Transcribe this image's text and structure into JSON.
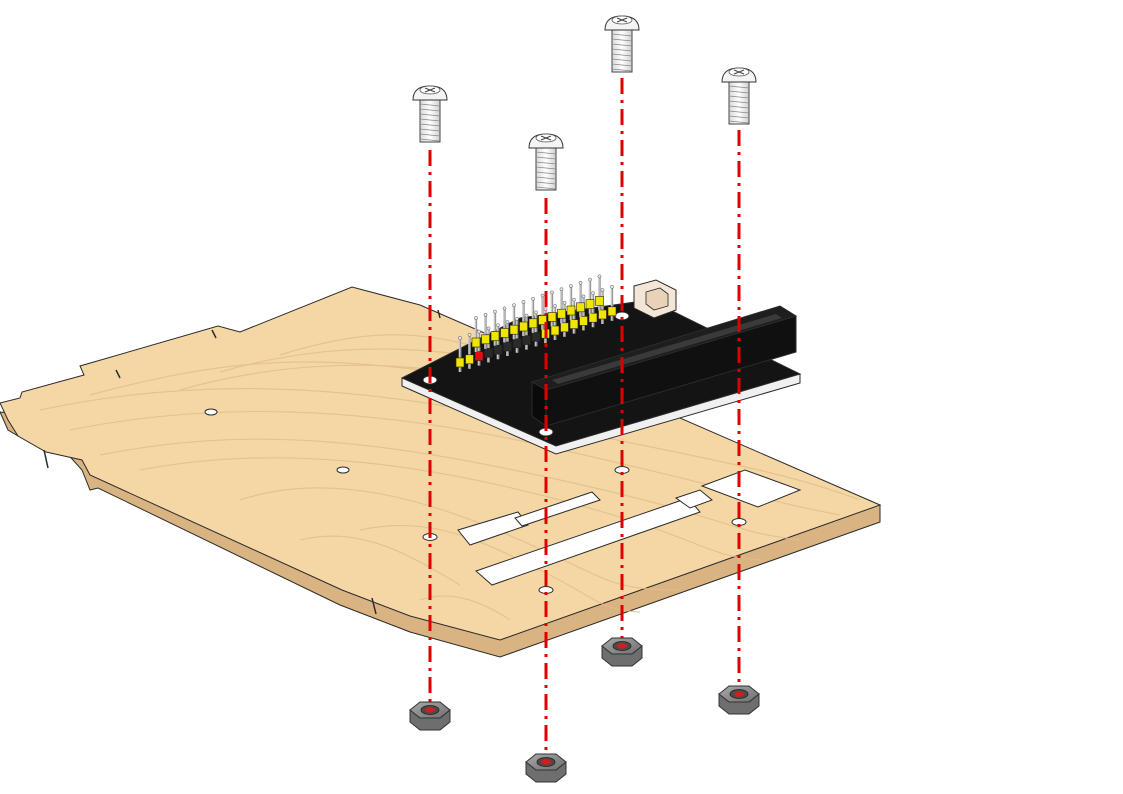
{
  "diagram": {
    "colors": {
      "background": "#ffffff",
      "wood_top": "#f5d7a6",
      "wood_edge": "#d9b382",
      "wood_grain": "#e7c38e",
      "outline": "#2b2b2b",
      "board": "#111111",
      "board_edge": "#f0f0f0",
      "axis_line": "#e10000",
      "pin_header_yellow": "#f2e600",
      "pin_header_red": "#e01010",
      "pin_metal": "#c8c8c8",
      "connector": "#f3e6d6",
      "screw": "#f4f4f4",
      "nut": "#8a8a8a",
      "nut_hole": "#d81b1b"
    },
    "parts": {
      "base_plate": "wooden-base-plate",
      "expansion_board": "black-expansion-board",
      "screws": [
        "screw-1",
        "screw-2",
        "screw-3",
        "screw-4"
      ],
      "nuts": [
        "nut-1",
        "nut-2",
        "nut-3",
        "nut-4"
      ]
    }
  }
}
